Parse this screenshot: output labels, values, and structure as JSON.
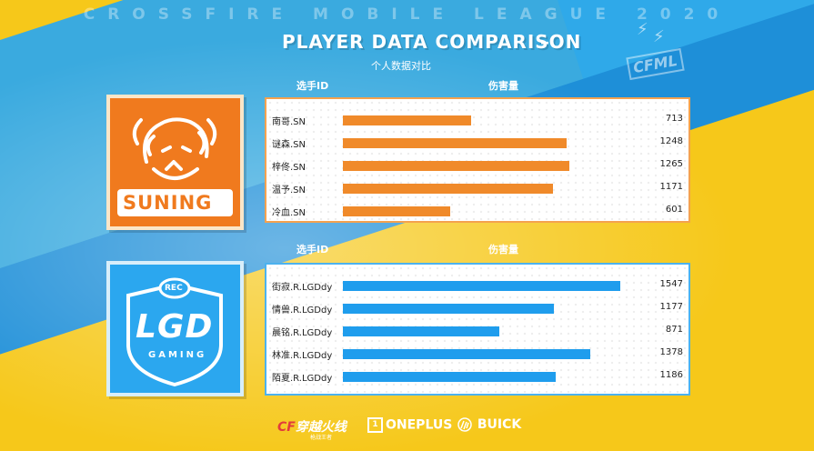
{
  "header": {
    "league": "CROSSFIRE MOBILE LEAGUE 2020",
    "title": "PLAYER DATA COMPARISON",
    "dash": "–",
    "subtitle": "个人数据对比",
    "mark": "CFML"
  },
  "column_headers": {
    "player_id": "选手ID",
    "damage": "伤害量"
  },
  "teams": [
    {
      "logo_name": "SUNING",
      "color": "#f07a1e"
    },
    {
      "logo_name": "LGD",
      "logo_subtext": "GAMING",
      "logo_top": "REC",
      "color": "#2ba7ef"
    }
  ],
  "chart_data": [
    {
      "type": "bar",
      "orientation": "horizontal",
      "xlim": [
        0,
        1700
      ],
      "categories": [
        "南哥.SN",
        "谜森.SN",
        "梓佟.SN",
        "温予.SN",
        "冷血.SN"
      ],
      "values": [
        713,
        1248,
        1265,
        1171,
        601
      ],
      "value_labels": [
        "713",
        "1248",
        "1265",
        "1171",
        "601"
      ],
      "color": "#f08a2a"
    },
    {
      "type": "bar",
      "orientation": "horizontal",
      "xlim": [
        0,
        1700
      ],
      "categories": [
        "街寂.R.LGDdy",
        "情兽.R.LGDdy",
        "晨铭.R.LGDdy",
        "林准.R.LGDdy",
        "陌夏.R.LGDdy"
      ],
      "values": [
        1547,
        1177,
        871,
        1378,
        1186
      ],
      "value_labels": [
        "1547",
        "1177",
        "871",
        "1378",
        "1186"
      ],
      "color": "#1f9ded"
    }
  ],
  "sponsors": {
    "cf_name": "穿越火线",
    "cf_sub": "枪战王者",
    "oneplus": "ONEPLUS",
    "buick": "BUICK"
  },
  "colors": {
    "background": "#f6c81a",
    "stripe": "#2fa9ea",
    "suning_orange": "#f07a1e",
    "lgd_blue": "#2ba7ef"
  }
}
